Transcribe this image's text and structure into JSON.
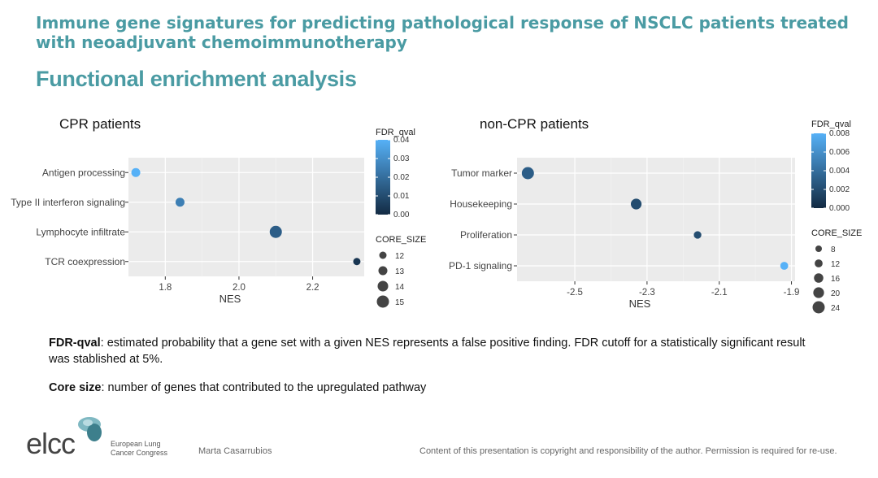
{
  "slide": {
    "title": "Immune gene signatures for predicting pathological response of NSCLC patients treated with neoadjuvant chemoimmunotherapy",
    "subtitle": "Functional enrichment analysis"
  },
  "colors": {
    "title": "#4a9ba3",
    "panel_bg": "#ebebeb",
    "grid": "#ffffff",
    "low_fdr": "#132b43",
    "high_fdr": "#56b1f7",
    "size_dot": "#444444"
  },
  "chart_data": [
    {
      "type": "scatter",
      "title": "CPR patients",
      "xlabel": "NES",
      "ylabel": "",
      "xlim": [
        1.7,
        2.34
      ],
      "xticks": [
        1.8,
        2.0,
        2.2
      ],
      "xtick_labels": [
        "1.8",
        "2.0",
        "2.2"
      ],
      "categories": [
        "Antigen processing",
        "Type II interferon signaling",
        "Lymphocyte infiltrate",
        "TCR coexpression"
      ],
      "points": [
        {
          "category": "Antigen processing",
          "nes": 1.72,
          "fdr_qval": 0.04,
          "core_size": 13
        },
        {
          "category": "Type II interferon signaling",
          "nes": 1.84,
          "fdr_qval": 0.025,
          "core_size": 13
        },
        {
          "category": "Lymphocyte infiltrate",
          "nes": 2.1,
          "fdr_qval": 0.015,
          "core_size": 15
        },
        {
          "category": "TCR coexpression",
          "nes": 2.32,
          "fdr_qval": 0.003,
          "core_size": 12
        }
      ],
      "color_legend": {
        "title": "FDR_qval",
        "min": 0.0,
        "max": 0.04,
        "ticks": [
          0.04,
          0.03,
          0.02,
          0.01,
          0.0
        ],
        "tick_labels": [
          "0.04",
          "0.03",
          "0.02",
          "0.01",
          "0.00"
        ]
      },
      "size_legend": {
        "title": "CORE_SIZE",
        "values": [
          12,
          13,
          14,
          15
        ],
        "labels": [
          "12",
          "13",
          "14",
          "15"
        ],
        "min": 12,
        "max": 15
      }
    },
    {
      "type": "scatter",
      "title": "non-CPR patients",
      "xlabel": "NES",
      "ylabel": "",
      "xlim": [
        -2.66,
        -1.89
      ],
      "xticks": [
        -2.5,
        -2.3,
        -2.1,
        -1.9
      ],
      "xtick_labels": [
        "-2.5",
        "-2.3",
        "-2.1",
        "-1.9"
      ],
      "categories": [
        "Tumor marker",
        "Housekeeping",
        "Proliferation",
        "PD-1 signaling"
      ],
      "points": [
        {
          "category": "Tumor marker",
          "nes": -2.63,
          "fdr_qval": 0.003,
          "core_size": 24
        },
        {
          "category": "Housekeeping",
          "nes": -2.33,
          "fdr_qval": 0.002,
          "core_size": 20
        },
        {
          "category": "Proliferation",
          "nes": -2.16,
          "fdr_qval": 0.002,
          "core_size": 11
        },
        {
          "category": "PD-1 signaling",
          "nes": -1.92,
          "fdr_qval": 0.008,
          "core_size": 12
        }
      ],
      "color_legend": {
        "title": "FDR_qval",
        "min": 0.0,
        "max": 0.008,
        "ticks": [
          0.008,
          0.006,
          0.004,
          0.002,
          0.0
        ],
        "tick_labels": [
          "0.008",
          "0.006",
          "0.004",
          "0.002",
          "0.000"
        ]
      },
      "size_legend": {
        "title": "CORE_SIZE",
        "values": [
          8,
          12,
          16,
          20,
          24
        ],
        "labels": [
          "8",
          "12",
          "16",
          "20",
          "24"
        ],
        "min": 8,
        "max": 24
      }
    }
  ],
  "notes": {
    "fdr_term": "FDR-qval",
    "fdr_text": ": estimated probability that a gene set with a given NES represents a false positive finding. FDR cutoff for a statistically significant result was stablished at 5%.",
    "core_term": "Core size",
    "core_text": ": number of genes that contributed to the upregulated pathway"
  },
  "footer": {
    "logo_text": "elcc",
    "logo_sub_1": "European Lung",
    "logo_sub_2": "Cancer Congress",
    "author": "Marta Casarrubios",
    "copyright": "Content of this presentation is copyright and responsibility of the author. Permission is required for re-use."
  }
}
